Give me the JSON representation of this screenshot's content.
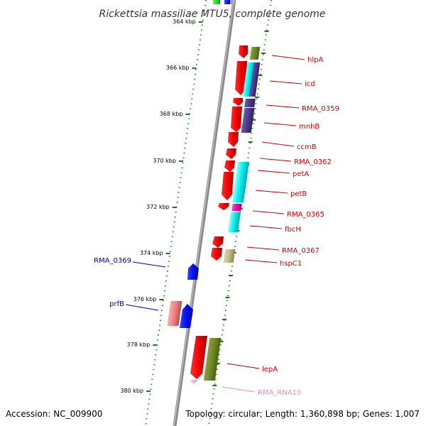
{
  "title": "Rickettsia massiliae MTU5, complete genome",
  "footer": {
    "accession": "Accession: NC_009900",
    "topology": "Topology: circular; Length: 1,360,898 bp; Genes: 1,007"
  },
  "colors": {
    "backbone": "#888888",
    "tick": "#1a7a1a",
    "dots": "#2a8a2a",
    "forward_label": "#0000aa",
    "reverse_label": "#cc0000",
    "rna_label": "#ee88bb"
  },
  "ticks": [
    {
      "label": "364 kbp",
      "kbp": 364
    },
    {
      "label": "366 kbp",
      "kbp": 366
    },
    {
      "label": "368 kbp",
      "kbp": 368
    },
    {
      "label": "370 kbp",
      "kbp": 370
    },
    {
      "label": "372 kbp",
      "kbp": 372
    },
    {
      "label": "374 kbp",
      "kbp": 374
    },
    {
      "label": "376 kbp",
      "kbp": 376
    },
    {
      "label": "378 kbp",
      "kbp": 378
    },
    {
      "label": "380 kbp",
      "kbp": 380
    }
  ],
  "labels": [
    {
      "text": "hlpA",
      "strand": "reverse"
    },
    {
      "text": "icd",
      "strand": "reverse"
    },
    {
      "text": "RMA_0359",
      "strand": "reverse"
    },
    {
      "text": "mnhB",
      "strand": "reverse"
    },
    {
      "text": "ccmB",
      "strand": "reverse"
    },
    {
      "text": "RMA_0362",
      "strand": "reverse"
    },
    {
      "text": "petA",
      "strand": "reverse"
    },
    {
      "text": "petB",
      "strand": "reverse"
    },
    {
      "text": "RMA_0365",
      "strand": "reverse"
    },
    {
      "text": "fbcH",
      "strand": "reverse"
    },
    {
      "text": "RMA_0367",
      "strand": "reverse"
    },
    {
      "text": "hspC1",
      "strand": "reverse"
    },
    {
      "text": "RMA_0369",
      "strand": "forward"
    },
    {
      "text": "prfB",
      "strand": "forward"
    },
    {
      "text": "lepA",
      "strand": "reverse"
    },
    {
      "text": "RMA_RNA10",
      "strand": "rna"
    }
  ]
}
